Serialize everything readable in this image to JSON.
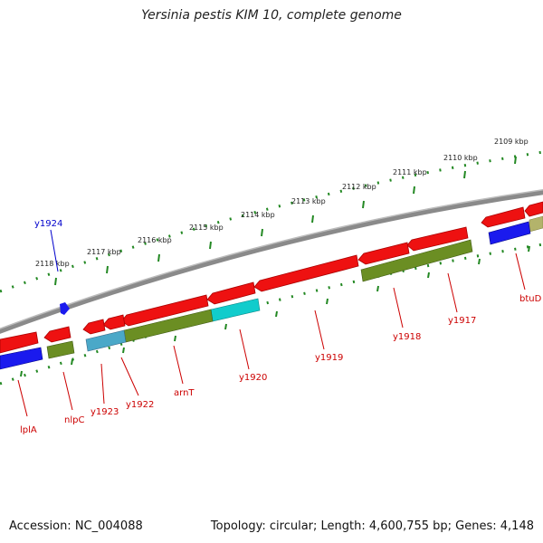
{
  "title": "Yersinia pestis KIM 10, complete genome",
  "footer": {
    "accession": "Accession: NC_004088",
    "summary": "Topology: circular; Length: 4,600,755 bp; Genes: 4,148"
  },
  "colors": {
    "backbone": "#7a7a7a",
    "tick": "#228822",
    "gene_label": "#cc0000",
    "highlight_label": "#0000cc",
    "red_gene": "#ee1111",
    "olive_cog": "#6b8e23",
    "blue_cog": "#1a1aee",
    "cyan_cog": "#11cccc"
  },
  "kbp_labels": [
    "2109 kbp",
    "2110 kbp",
    "2111 kbp",
    "2112 kbp",
    "2113 kbp",
    "2114 kbp",
    "2115 kbp",
    "2116 kbp",
    "2117 kbp",
    "2118 kbp"
  ],
  "gene_labels": [
    "btuD",
    "y1917",
    "y1918",
    "y1919",
    "y1920",
    "arnT",
    "y1922",
    "y1923",
    "nlpC",
    "lplA"
  ],
  "highlight_gene": "y1924"
}
